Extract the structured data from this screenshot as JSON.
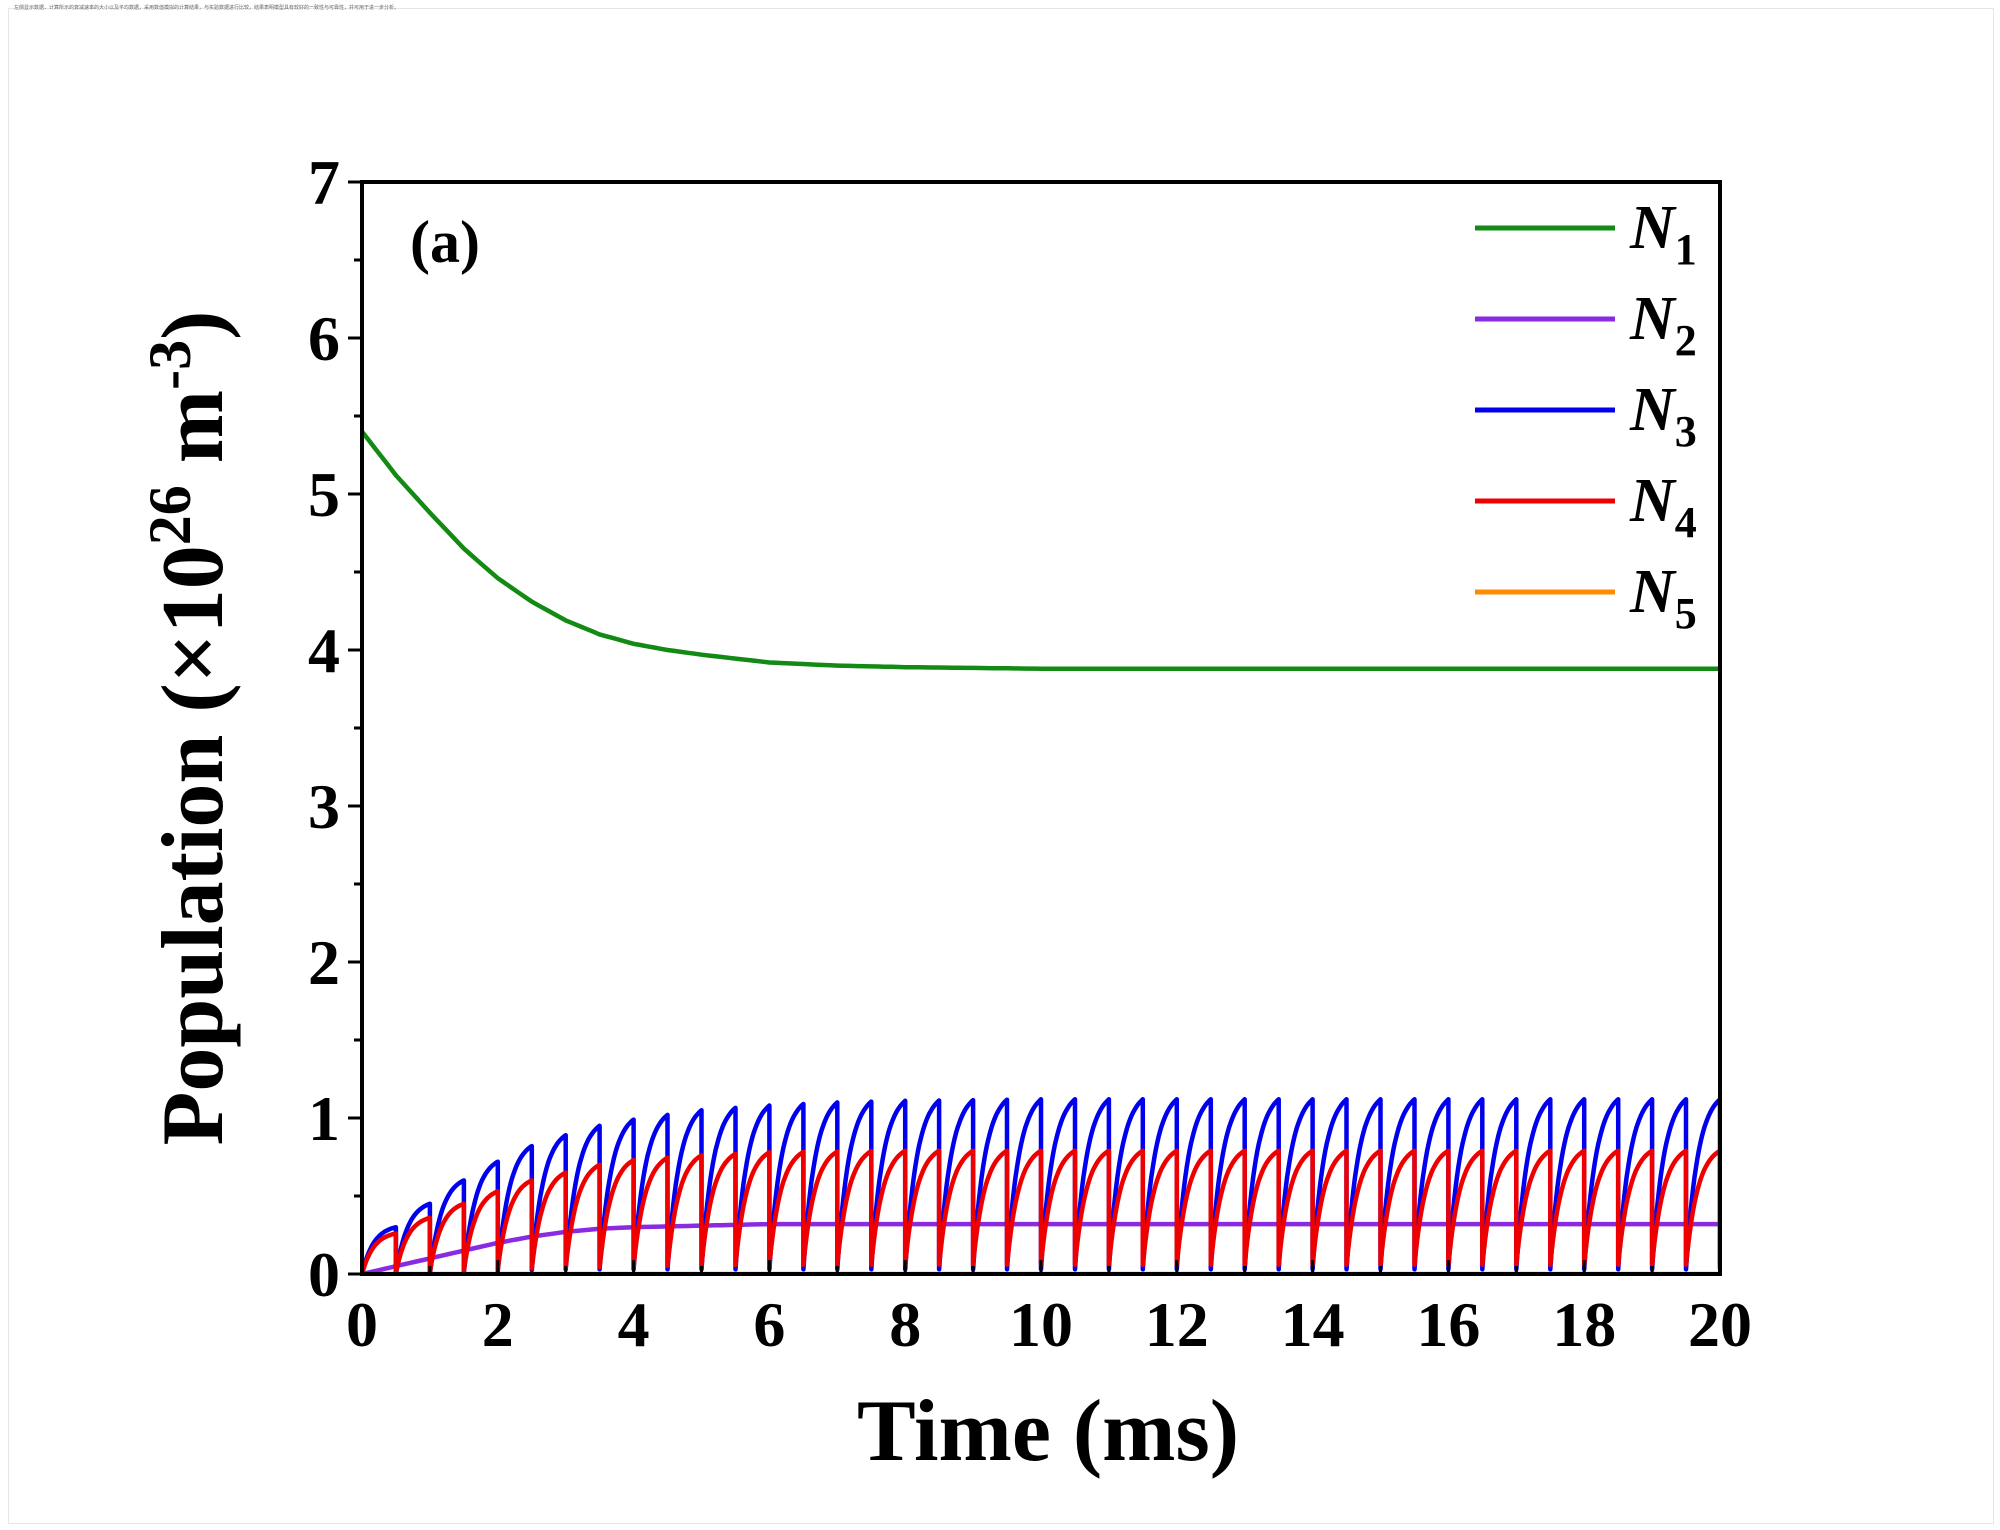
{
  "header_note": "左侧显示数据，计算所示的衰减速率的大小以及平均数据，采用数值模拟的计算结果，与实验数据进行比较，结果表明模型具有较好的一致性与可靠性，并可用于进一步分析。",
  "chart_data": {
    "type": "line",
    "panel_label": "(a)",
    "xlabel": "Time (ms)",
    "ylabel_main": "Population (×10",
    "ylabel_exp1": "26",
    "ylabel_mid": " m",
    "ylabel_exp2": "-3",
    "ylabel_end": ")",
    "xlim": [
      0,
      20
    ],
    "ylim": [
      0,
      7
    ],
    "x_ticks": [
      "0",
      "2",
      "4",
      "6",
      "8",
      "10",
      "12",
      "14",
      "16",
      "18",
      "20"
    ],
    "y_ticks": [
      "0",
      "1",
      "2",
      "3",
      "4",
      "5",
      "6",
      "7"
    ],
    "legend_position": "top-right",
    "pulse_period_ms": 0.5,
    "series": [
      {
        "name": "N",
        "sub": "1",
        "color": "#138a13",
        "x": [
          0,
          0.5,
          1,
          1.5,
          2,
          2.5,
          3,
          3.5,
          4,
          4.5,
          5,
          6,
          7,
          8,
          10,
          12,
          14,
          16,
          18,
          20
        ],
        "y": [
          5.4,
          5.12,
          4.88,
          4.65,
          4.46,
          4.31,
          4.19,
          4.1,
          4.04,
          4.0,
          3.97,
          3.92,
          3.9,
          3.89,
          3.88,
          3.88,
          3.88,
          3.88,
          3.88,
          3.88
        ]
      },
      {
        "name": "N",
        "sub": "2",
        "color": "#8a2be2",
        "x": [
          0,
          0.5,
          1,
          1.5,
          2,
          2.5,
          3,
          3.5,
          4,
          5,
          6,
          8,
          10,
          14,
          20
        ],
        "y": [
          0.0,
          0.05,
          0.1,
          0.15,
          0.2,
          0.24,
          0.27,
          0.29,
          0.3,
          0.31,
          0.32,
          0.32,
          0.32,
          0.32,
          0.32
        ]
      },
      {
        "name": "N",
        "sub": "3",
        "color": "#0000ee",
        "base_x": [
          0,
          1,
          2,
          3,
          4,
          5,
          6,
          7,
          8,
          10,
          20
        ],
        "base_y": [
          0.0,
          0.0,
          0.02,
          0.03,
          0.03,
          0.03,
          0.03,
          0.03,
          0.03,
          0.03,
          0.03
        ],
        "peak_x": [
          0.5,
          1,
          1.5,
          2,
          2.5,
          3,
          3.5,
          4,
          4.5,
          5,
          6,
          7,
          8,
          10,
          20
        ],
        "peak_y": [
          0.3,
          0.45,
          0.6,
          0.72,
          0.82,
          0.89,
          0.95,
          0.99,
          1.02,
          1.05,
          1.08,
          1.1,
          1.11,
          1.12,
          1.12
        ]
      },
      {
        "name": "N",
        "sub": "4",
        "color": "#ee0000",
        "base_x": [
          0,
          2,
          4,
          6,
          8,
          10,
          20
        ],
        "base_y": [
          0.0,
          0.03,
          0.05,
          0.06,
          0.06,
          0.06,
          0.06
        ],
        "peak_x": [
          0.5,
          1,
          1.5,
          2,
          2.5,
          3,
          3.5,
          4,
          5,
          6,
          8,
          10,
          20
        ],
        "peak_y": [
          0.26,
          0.36,
          0.45,
          0.53,
          0.6,
          0.65,
          0.7,
          0.73,
          0.76,
          0.78,
          0.79,
          0.79,
          0.79
        ]
      },
      {
        "name": "N",
        "sub": "5",
        "color": "#ff8c00",
        "x": [
          0,
          20
        ],
        "y": [
          0.0,
          0.0
        ]
      }
    ]
  }
}
